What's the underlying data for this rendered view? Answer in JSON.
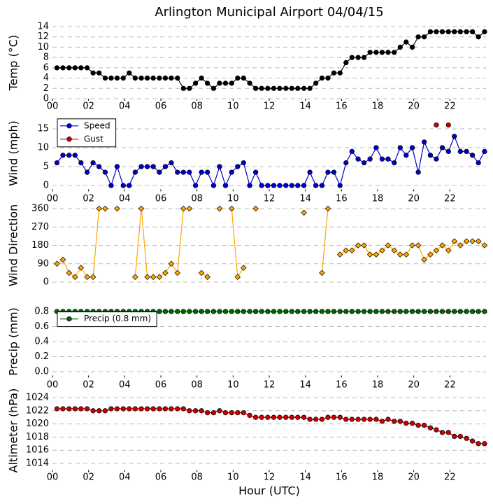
{
  "chart_data": [
    {
      "type": "line",
      "title": "Arlington Municipal Airport 04/04/15",
      "ylabel": "Temp (°C)",
      "color": "#000000",
      "marker": "circle",
      "x": [
        0.25,
        0.58,
        0.92,
        1.25,
        1.58,
        1.92,
        2.25,
        2.58,
        2.92,
        3.25,
        3.58,
        3.92,
        4.25,
        4.58,
        4.92,
        5.25,
        5.58,
        5.92,
        6.25,
        6.58,
        6.92,
        7.25,
        7.58,
        7.92,
        8.25,
        8.58,
        8.92,
        9.25,
        9.58,
        9.92,
        10.25,
        10.58,
        10.92,
        11.25,
        11.58,
        11.92,
        12.25,
        12.58,
        12.92,
        13.25,
        13.58,
        13.92,
        14.25,
        14.58,
        14.92,
        15.25,
        15.58,
        15.92,
        16.25,
        16.58,
        16.92,
        17.25,
        17.58,
        17.92,
        18.25,
        18.58,
        18.92,
        19.25,
        19.58,
        19.92,
        20.25,
        20.58,
        20.92,
        21.25,
        21.58,
        21.92,
        22.25,
        22.58,
        22.92,
        23.25,
        23.58,
        23.92
      ],
      "values": [
        6,
        6,
        6,
        6,
        6,
        6,
        5,
        5,
        4,
        4,
        4,
        4,
        5,
        4,
        4,
        4,
        4,
        4,
        4,
        4,
        4,
        2,
        2,
        3,
        4,
        3,
        2,
        3,
        3,
        3,
        4,
        4,
        3,
        2,
        2,
        2,
        2,
        2,
        2,
        2,
        2,
        2,
        2,
        3,
        4,
        4,
        5,
        5,
        7,
        8,
        8,
        8,
        9,
        9,
        9,
        9,
        9,
        10,
        11,
        10,
        12,
        12,
        13,
        13,
        13,
        13,
        13,
        13,
        13,
        13,
        12,
        13
      ],
      "xlim": [
        0,
        24
      ],
      "xticks": [
        {
          "value": 0,
          "label": "00"
        },
        {
          "value": 2,
          "label": "02"
        },
        {
          "value": 4,
          "label": "04"
        },
        {
          "value": 6,
          "label": "06"
        },
        {
          "value": 8,
          "label": "08"
        },
        {
          "value": 10,
          "label": "10"
        },
        {
          "value": 12,
          "label": "12"
        },
        {
          "value": 14,
          "label": "14"
        },
        {
          "value": 16,
          "label": "16"
        },
        {
          "value": 18,
          "label": "18"
        },
        {
          "value": 20,
          "label": "20"
        },
        {
          "value": 22,
          "label": "22"
        }
      ],
      "ylim": [
        0,
        14
      ],
      "yticks": [
        0,
        2,
        4,
        6,
        8,
        10,
        12,
        14
      ],
      "grid": true
    },
    {
      "type": "line",
      "ylabel": "Wind (mph)",
      "legend": "upper left",
      "marker": "circle",
      "x": [
        0.25,
        0.58,
        0.92,
        1.25,
        1.58,
        1.92,
        2.25,
        2.58,
        2.92,
        3.25,
        3.58,
        3.92,
        4.25,
        4.58,
        4.92,
        5.25,
        5.58,
        5.92,
        6.25,
        6.58,
        6.92,
        7.25,
        7.58,
        7.92,
        8.25,
        8.58,
        8.92,
        9.25,
        9.58,
        9.92,
        10.25,
        10.58,
        10.92,
        11.25,
        11.58,
        11.92,
        12.25,
        12.58,
        12.92,
        13.25,
        13.58,
        13.92,
        14.25,
        14.58,
        14.92,
        15.25,
        15.58,
        15.92,
        16.25,
        16.58,
        16.92,
        17.25,
        17.58,
        17.92,
        18.25,
        18.58,
        18.92,
        19.25,
        19.58,
        19.92,
        20.25,
        20.58,
        20.92,
        21.25,
        21.58,
        21.92,
        22.25,
        22.58,
        22.92,
        23.25,
        23.58,
        23.92
      ],
      "series": [
        {
          "name": "Speed",
          "color": "#0000cc",
          "values": [
            6,
            8,
            8,
            8,
            6,
            3.5,
            6,
            5,
            3.5,
            0,
            5,
            0,
            0,
            3.5,
            5,
            5,
            5,
            3.5,
            5,
            6,
            3.5,
            3.5,
            3.5,
            0,
            3.5,
            3.5,
            0,
            5,
            0,
            3.5,
            5,
            6,
            0,
            3.5,
            0,
            0,
            0,
            0,
            0,
            0,
            0,
            0,
            3.5,
            0,
            0,
            3.5,
            3.5,
            0,
            6,
            9,
            7,
            6,
            7,
            10,
            7,
            7,
            6,
            10,
            8,
            10,
            3.5,
            11.5,
            8,
            7,
            10,
            9,
            13,
            9,
            9,
            8,
            6,
            9
          ]
        },
        {
          "name": "Gust",
          "color": "#cc0000",
          "values": [
            null,
            null,
            null,
            null,
            null,
            null,
            null,
            null,
            null,
            null,
            null,
            null,
            null,
            null,
            null,
            null,
            null,
            null,
            null,
            null,
            null,
            null,
            null,
            null,
            null,
            null,
            null,
            null,
            null,
            null,
            null,
            null,
            null,
            null,
            null,
            null,
            null,
            null,
            null,
            null,
            null,
            null,
            null,
            null,
            null,
            null,
            null,
            null,
            null,
            null,
            null,
            null,
            null,
            null,
            null,
            null,
            null,
            null,
            null,
            null,
            null,
            null,
            null,
            16,
            null,
            16,
            null,
            null,
            null,
            null,
            null,
            null
          ]
        }
      ],
      "xlim": [
        0,
        24
      ],
      "xticks": [
        {
          "value": 0,
          "label": "00"
        },
        {
          "value": 2,
          "label": "02"
        },
        {
          "value": 4,
          "label": "04"
        },
        {
          "value": 6,
          "label": "06"
        },
        {
          "value": 8,
          "label": "08"
        },
        {
          "value": 10,
          "label": "10"
        },
        {
          "value": 12,
          "label": "12"
        },
        {
          "value": 14,
          "label": "14"
        },
        {
          "value": 16,
          "label": "16"
        },
        {
          "value": 18,
          "label": "18"
        },
        {
          "value": 20,
          "label": "20"
        },
        {
          "value": 22,
          "label": "22"
        }
      ],
      "ylim": [
        -1,
        18
      ],
      "yticks": [
        0,
        5,
        10,
        15
      ],
      "grid": true
    },
    {
      "type": "line",
      "ylabel": "Wind Direction",
      "color": "#ffa500",
      "marker": "diamond",
      "x": [
        0.25,
        0.58,
        0.92,
        1.25,
        1.58,
        1.92,
        2.25,
        2.58,
        2.92,
        3.25,
        3.58,
        3.92,
        4.25,
        4.58,
        4.92,
        5.25,
        5.58,
        5.92,
        6.25,
        6.58,
        6.92,
        7.25,
        7.58,
        7.92,
        8.25,
        8.58,
        8.92,
        9.25,
        9.58,
        9.92,
        10.25,
        10.58,
        10.92,
        11.25,
        11.58,
        11.92,
        12.25,
        12.58,
        12.92,
        13.25,
        13.58,
        13.92,
        14.25,
        14.58,
        14.92,
        15.25,
        15.58,
        15.92,
        16.25,
        16.58,
        16.92,
        17.25,
        17.58,
        17.92,
        18.25,
        18.58,
        18.92,
        19.25,
        19.58,
        19.92,
        20.25,
        20.58,
        20.92,
        21.25,
        21.58,
        21.92,
        22.25,
        22.58,
        22.92,
        23.25,
        23.58,
        23.92
      ],
      "values": [
        90,
        110,
        45,
        25,
        70,
        25,
        25,
        360,
        360,
        null,
        360,
        null,
        null,
        25,
        360,
        25,
        25,
        25,
        45,
        90,
        45,
        360,
        360,
        null,
        45,
        25,
        null,
        360,
        null,
        360,
        25,
        70,
        null,
        360,
        null,
        null,
        null,
        null,
        null,
        null,
        null,
        340,
        null,
        null,
        45,
        360,
        null,
        135,
        155,
        155,
        180,
        180,
        135,
        135,
        155,
        180,
        155,
        135,
        135,
        180,
        180,
        110,
        135,
        155,
        180,
        155,
        200,
        180,
        200,
        200,
        200,
        180
      ],
      "xlim": [
        0,
        24
      ],
      "ylim": [
        -30,
        390
      ],
      "yticks": [
        0,
        90,
        180,
        270,
        360
      ],
      "grid": true
    },
    {
      "type": "line",
      "ylabel": "Precip (mm)",
      "legend": "upper left",
      "marker": "circle",
      "x": [
        0.25,
        0.58,
        0.92,
        1.25,
        1.58,
        1.92,
        2.25,
        2.58,
        2.92,
        3.25,
        3.58,
        3.92,
        4.25,
        4.58,
        4.92,
        5.25,
        5.58,
        5.92,
        6.25,
        6.58,
        6.92,
        7.25,
        7.58,
        7.92,
        8.25,
        8.58,
        8.92,
        9.25,
        9.58,
        9.92,
        10.25,
        10.58,
        10.92,
        11.25,
        11.58,
        11.92,
        12.25,
        12.58,
        12.92,
        13.25,
        13.58,
        13.92,
        14.25,
        14.58,
        14.92,
        15.25,
        15.58,
        15.92,
        16.25,
        16.58,
        16.92,
        17.25,
        17.58,
        17.92,
        18.25,
        18.58,
        18.92,
        19.25,
        19.58,
        19.92,
        20.25,
        20.58,
        20.92,
        21.25,
        21.58,
        21.92,
        22.25,
        22.58,
        22.92,
        23.25,
        23.58,
        23.92
      ],
      "series": [
        {
          "name": "Precip (0.8 mm)",
          "color": "#006400",
          "values": [
            0.8,
            0.8,
            0.8,
            0.8,
            0.8,
            0.8,
            0.8,
            0.8,
            0.8,
            0.8,
            0.8,
            0.8,
            0.8,
            0.8,
            0.8,
            0.8,
            0.8,
            0.8,
            0.8,
            0.8,
            0.8,
            0.8,
            0.8,
            0.8,
            0.8,
            0.8,
            0.8,
            0.8,
            0.8,
            0.8,
            0.8,
            0.8,
            0.8,
            0.8,
            0.8,
            0.8,
            0.8,
            0.8,
            0.8,
            0.8,
            0.8,
            0.8,
            0.8,
            0.8,
            0.8,
            0.8,
            0.8,
            0.8,
            0.8,
            0.8,
            0.8,
            0.8,
            0.8,
            0.8,
            0.8,
            0.8,
            0.8,
            0.8,
            0.8,
            0.8,
            0.8,
            0.8,
            0.8,
            0.8,
            0.8,
            0.8,
            0.8,
            0.8,
            0.8,
            0.8,
            0.8,
            0.8
          ]
        }
      ],
      "xlim": [
        0,
        24
      ],
      "xticks": [
        {
          "value": 0,
          "label": "00"
        },
        {
          "value": 2,
          "label": "02"
        },
        {
          "value": 4,
          "label": "04"
        },
        {
          "value": 6,
          "label": "06"
        },
        {
          "value": 8,
          "label": "08"
        },
        {
          "value": 10,
          "label": "10"
        },
        {
          "value": 12,
          "label": "12"
        },
        {
          "value": 14,
          "label": "14"
        },
        {
          "value": 16,
          "label": "16"
        },
        {
          "value": 18,
          "label": "18"
        },
        {
          "value": 20,
          "label": "20"
        },
        {
          "value": 22,
          "label": "22"
        }
      ],
      "ylim": [
        -0.05,
        0.85
      ],
      "yticks": [
        {
          "value": 0,
          "label": "0.0"
        },
        {
          "value": 0.2,
          "label": "0.2"
        },
        {
          "value": 0.4,
          "label": "0.4"
        },
        {
          "value": 0.6,
          "label": "0.6"
        },
        {
          "value": 0.8,
          "label": "0.8"
        }
      ],
      "grid": true
    },
    {
      "type": "line",
      "ylabel": "Altimeter (hPa)",
      "xlabel": "Hour (UTC)",
      "color": "#cc0000",
      "line_color": "#8b0000",
      "marker": "circle",
      "x": [
        0.25,
        0.58,
        0.92,
        1.25,
        1.58,
        1.92,
        2.25,
        2.58,
        2.92,
        3.25,
        3.58,
        3.92,
        4.25,
        4.58,
        4.92,
        5.25,
        5.58,
        5.92,
        6.25,
        6.58,
        6.92,
        7.25,
        7.58,
        7.92,
        8.25,
        8.58,
        8.92,
        9.25,
        9.58,
        9.92,
        10.25,
        10.58,
        10.92,
        11.25,
        11.58,
        11.92,
        12.25,
        12.58,
        12.92,
        13.25,
        13.58,
        13.92,
        14.25,
        14.58,
        14.92,
        15.25,
        15.58,
        15.92,
        16.25,
        16.58,
        16.92,
        17.25,
        17.58,
        17.92,
        18.25,
        18.58,
        18.92,
        19.25,
        19.58,
        19.92,
        20.25,
        20.58,
        20.92,
        21.25,
        21.58,
        21.92,
        22.25,
        22.58,
        22.92,
        23.25,
        23.58,
        23.92
      ],
      "values": [
        1022.3,
        1022.3,
        1022.3,
        1022.3,
        1022.3,
        1022.3,
        1022.0,
        1022.0,
        1022.0,
        1022.3,
        1022.3,
        1022.3,
        1022.3,
        1022.3,
        1022.3,
        1022.3,
        1022.3,
        1022.3,
        1022.3,
        1022.3,
        1022.3,
        1022.3,
        1022.0,
        1022.0,
        1022.0,
        1021.7,
        1021.7,
        1022.0,
        1021.7,
        1021.7,
        1021.7,
        1021.7,
        1021.3,
        1021.0,
        1021.0,
        1021.0,
        1021.0,
        1021.0,
        1021.0,
        1021.0,
        1021.0,
        1021.0,
        1020.7,
        1020.7,
        1020.7,
        1021.0,
        1021.0,
        1021.0,
        1020.7,
        1020.7,
        1020.7,
        1020.7,
        1020.7,
        1020.7,
        1020.4,
        1020.7,
        1020.4,
        1020.4,
        1020.1,
        1020.1,
        1019.8,
        1019.8,
        1019.4,
        1019.1,
        1018.7,
        1018.7,
        1018.1,
        1018.1,
        1017.8,
        1017.4,
        1017.0,
        1017.0
      ],
      "xlim": [
        0,
        24
      ],
      "xticks": [
        {
          "value": 0,
          "label": "00"
        },
        {
          "value": 2,
          "label": "02"
        },
        {
          "value": 4,
          "label": "04"
        },
        {
          "value": 6,
          "label": "06"
        },
        {
          "value": 8,
          "label": "08"
        },
        {
          "value": 10,
          "label": "10"
        },
        {
          "value": 12,
          "label": "12"
        },
        {
          "value": 14,
          "label": "14"
        },
        {
          "value": 16,
          "label": "16"
        },
        {
          "value": 18,
          "label": "18"
        },
        {
          "value": 20,
          "label": "20"
        },
        {
          "value": 22,
          "label": "22"
        }
      ],
      "ylim": [
        1013,
        1025
      ],
      "yticks": [
        1014,
        1016,
        1018,
        1020,
        1022,
        1024
      ],
      "grid": true
    }
  ]
}
